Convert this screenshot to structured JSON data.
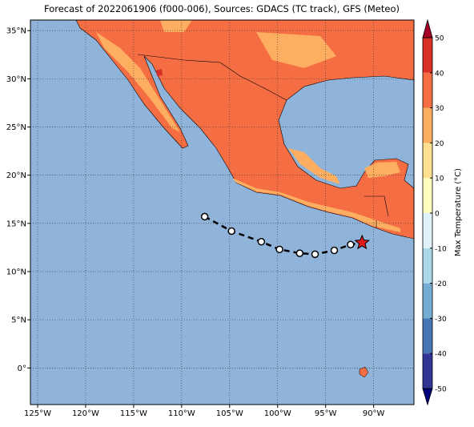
{
  "title": "Forecast of 2022061906 (f000-006), Sources: GDACS (TC track), GFS (Meteo)",
  "map": {
    "lonlim": [
      -125.75,
      -85.8
    ],
    "latlim": [
      -3.8,
      36.1
    ],
    "lonticks": [
      {
        "value": -125,
        "label": "125°W"
      },
      {
        "value": -120,
        "label": "120°W"
      },
      {
        "value": -115,
        "label": "115°W"
      },
      {
        "value": -110,
        "label": "110°W"
      },
      {
        "value": -105,
        "label": "105°W"
      },
      {
        "value": -100,
        "label": "100°W"
      },
      {
        "value": -95,
        "label": "95°W"
      },
      {
        "value": -90,
        "label": "90°W"
      }
    ],
    "latticks": [
      {
        "value": 0,
        "label": "0°"
      },
      {
        "value": 5,
        "label": "5°N"
      },
      {
        "value": 10,
        "label": "10°N"
      },
      {
        "value": 15,
        "label": "15°N"
      },
      {
        "value": 20,
        "label": "20°N"
      },
      {
        "value": 25,
        "label": "25°N"
      },
      {
        "value": 30,
        "label": "30°N"
      },
      {
        "value": 35,
        "label": "35°N"
      }
    ],
    "grid": true,
    "track": {
      "lon": [
        -107.6,
        -104.8,
        -101.7,
        -99.8,
        -97.7,
        -96.1,
        -94.1,
        -92.4
      ],
      "lat": [
        15.7,
        14.2,
        13.1,
        12.3,
        11.9,
        11.8,
        12.2,
        12.8
      ],
      "color": "#000000"
    },
    "current_position": {
      "lon": -91.2,
      "lat": 13.0,
      "color": "#e31a1c"
    }
  },
  "colorbar": {
    "label": "Max Temperature (°C)",
    "lim": [
      -50,
      50
    ],
    "ticks": [
      -50,
      -40,
      -30,
      -20,
      -10,
      0,
      10,
      20,
      30,
      40,
      50
    ],
    "colors": [
      "#313695",
      "#4575b4",
      "#74add1",
      "#abd9e9",
      "#e0f3f8",
      "#ffffbf",
      "#fee090",
      "#fdae61",
      "#f46d43",
      "#d73027"
    ],
    "extend_colors": [
      "#00007f",
      "#a50026"
    ]
  }
}
